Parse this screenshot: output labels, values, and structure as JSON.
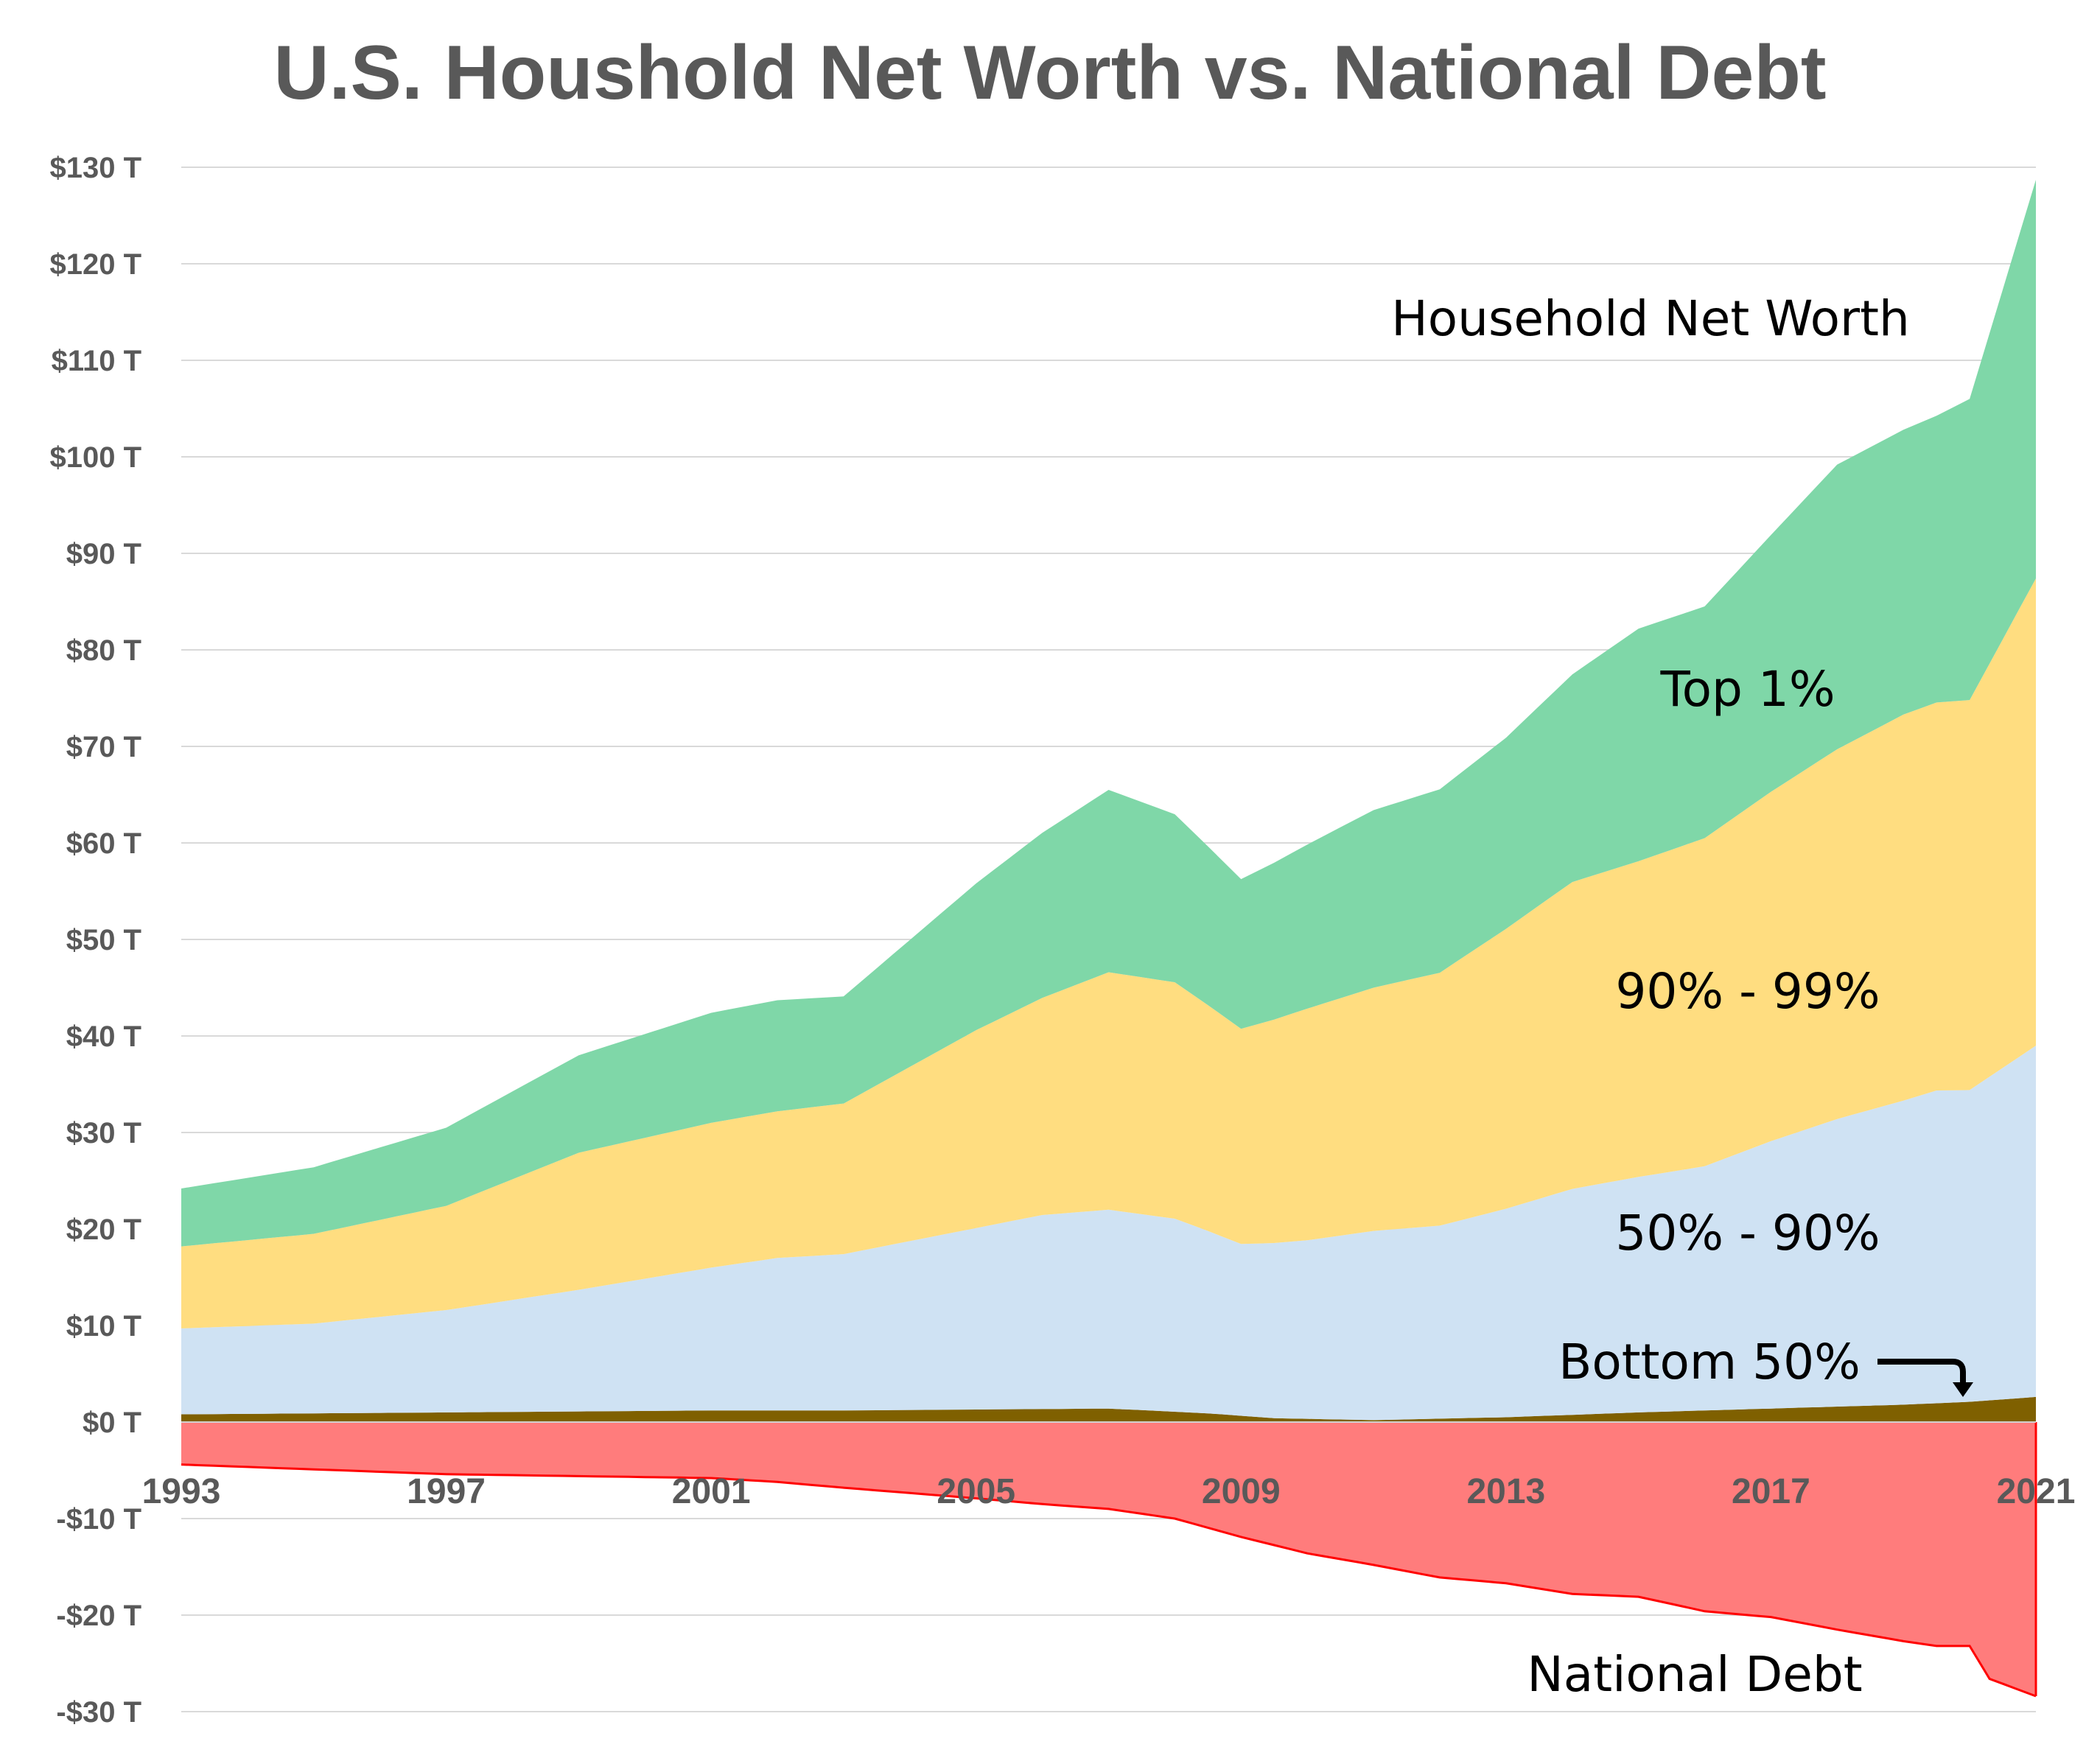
{
  "chart_data": {
    "type": "area",
    "title": "U.S. Houshold Net Worth vs. National Debt",
    "xlabel": "",
    "ylabel": "",
    "x_range": [
      1993,
      2021
    ],
    "ylim": [
      -30,
      130
    ],
    "y_ticks": [
      130,
      120,
      110,
      100,
      90,
      80,
      70,
      60,
      50,
      40,
      30,
      20,
      10,
      0,
      -10,
      -20,
      -30
    ],
    "y_tick_labels": [
      "$130 T",
      "$120 T",
      "$110 T",
      "$100 T",
      "$90 T",
      "$80 T",
      "$70 T",
      "$60 T",
      "$50 T",
      "$40 T",
      "$30 T",
      "$20 T",
      "$10 T",
      "$0 T",
      "-$10 T",
      "-$20 T",
      "-$30 T"
    ],
    "x_ticks": [
      1993,
      1997,
      2001,
      2005,
      2009,
      2013,
      2017,
      2021
    ],
    "x_tick_labels": [
      "1993",
      "1997",
      "2001",
      "2005",
      "2009",
      "2013",
      "2017",
      "2021"
    ],
    "grid": "horizontal",
    "stacked": true,
    "series": [
      {
        "name": "Bottom 50%",
        "color": "#7f6000",
        "x": [
          1993,
          1995,
          1997,
          1999,
          2001,
          2003,
          2005,
          2007,
          2008.5,
          2009.5,
          2011,
          2013,
          2015,
          2017,
          2019,
          2020,
          2021
        ],
        "values": [
          0.8,
          0.9,
          1.0,
          1.1,
          1.2,
          1.2,
          1.3,
          1.4,
          0.9,
          0.4,
          0.2,
          0.5,
          1.0,
          1.4,
          1.8,
          2.1,
          2.6
        ]
      },
      {
        "name": "50% - 90%",
        "color": "#cfe2f3",
        "x": [
          1993,
          1995,
          1997,
          1999,
          2001,
          2002,
          2003,
          2005,
          2006,
          2007,
          2008,
          2009,
          2010,
          2011,
          2012,
          2013,
          2014,
          2015,
          2016,
          2017,
          2018,
          2019,
          2019.5,
          2020,
          2021
        ],
        "values": [
          8.9,
          9.3,
          10.6,
          12.6,
          14.8,
          15.8,
          16.2,
          18.8,
          20.1,
          20.6,
          20.0,
          17.8,
          18.5,
          19.6,
          20.0,
          21.6,
          23.4,
          24.4,
          25.3,
          27.7,
          29.8,
          31.5,
          32.4,
          32.3,
          36.4
        ]
      },
      {
        "name": "90% - 99%",
        "color": "#ffdd80",
        "x": [
          1993,
          1995,
          1997,
          1999,
          2001,
          2002,
          2003,
          2005,
          2006,
          2007,
          2008,
          2009,
          2010,
          2011,
          2012,
          2013,
          2014,
          2015,
          2016,
          2017,
          2018,
          2019,
          2019.5,
          2020,
          2021
        ],
        "values": [
          8.5,
          9.3,
          10.8,
          14.2,
          15.0,
          15.2,
          15.6,
          20.5,
          22.5,
          24.6,
          24.5,
          22.3,
          24.0,
          25.2,
          26.2,
          29.0,
          31.8,
          32.7,
          34.0,
          36.2,
          38.3,
          40.0,
          40.2,
          40.4,
          48.4
        ]
      },
      {
        "name": "Top 1%",
        "color": "#7fd7a8",
        "x": [
          1993,
          1995,
          1997,
          1999,
          2001,
          2002,
          2003,
          2005,
          2006,
          2007,
          2008,
          2009,
          2010,
          2011,
          2012,
          2013,
          2014,
          2015,
          2016,
          2017,
          2018,
          2019,
          2019.5,
          2020,
          2021
        ],
        "values": [
          6.0,
          6.9,
          8.1,
          10.1,
          11.4,
          11.5,
          11.1,
          15.2,
          17.1,
          18.9,
          17.4,
          15.5,
          17.0,
          18.4,
          19.0,
          19.8,
          21.5,
          24.1,
          24.0,
          26.6,
          29.5,
          29.5,
          29.7,
          31.2,
          41.3
        ]
      },
      {
        "name": "National Debt",
        "color": "#ff7c7c",
        "line_color": "#ff0000",
        "x": [
          1993,
          1995,
          1997,
          1999,
          2001,
          2002,
          2003,
          2005,
          2006,
          2007,
          2008,
          2009,
          2010,
          2011,
          2012,
          2013,
          2014,
          2015,
          2016,
          2017,
          2018,
          2019,
          2019.5,
          2020,
          2020.3,
          2021
        ],
        "values": [
          -4.4,
          -4.9,
          -5.4,
          -5.6,
          -5.8,
          -6.2,
          -6.8,
          -7.9,
          -8.5,
          -9.0,
          -10.0,
          -11.9,
          -13.6,
          -14.8,
          -16.1,
          -16.7,
          -17.8,
          -18.1,
          -19.6,
          -20.2,
          -21.5,
          -22.7,
          -23.2,
          -23.2,
          -26.6,
          -28.4
        ]
      }
    ],
    "annotations": [
      {
        "text": "Household Net Worth"
      },
      {
        "text": "Top 1%"
      },
      {
        "text": "90% - 99%"
      },
      {
        "text": "50% - 90%"
      },
      {
        "text": "Bottom 50%"
      },
      {
        "text": "National Debt"
      }
    ],
    "legend": "none"
  }
}
